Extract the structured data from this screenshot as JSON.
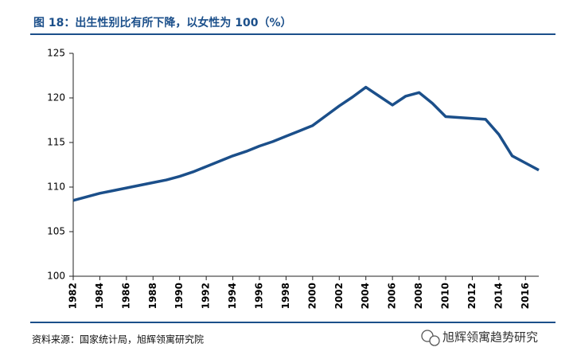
{
  "chart_data": {
    "type": "line",
    "title": "图 18：出生性别比有所下降，以女性为 100（%）",
    "source": "资料来源：国家统计局，旭辉领寓研究院",
    "watermark": "旭辉领寓趋势研究",
    "x": [
      1982,
      1983,
      1984,
      1985,
      1986,
      1987,
      1988,
      1989,
      1990,
      1991,
      1992,
      1993,
      1994,
      1995,
      1996,
      1997,
      1998,
      1999,
      2000,
      2001,
      2002,
      2003,
      2004,
      2005,
      2006,
      2007,
      2008,
      2009,
      2010,
      2011,
      2012,
      2013,
      2014,
      2015,
      2016,
      2017
    ],
    "series": [
      {
        "color": "#1b4f8a",
        "values": [
          108.5,
          108.9,
          109.3,
          109.6,
          109.9,
          110.2,
          110.5,
          110.8,
          111.2,
          111.7,
          112.3,
          112.9,
          113.5,
          114.0,
          114.6,
          115.1,
          115.7,
          116.3,
          116.9,
          118.0,
          119.1,
          120.1,
          121.2,
          120.2,
          119.2,
          120.2,
          120.6,
          119.4,
          117.9,
          117.8,
          117.7,
          117.6,
          115.9,
          113.5,
          112.7,
          111.9
        ]
      }
    ],
    "xlim": [
      1982,
      2017
    ],
    "xticks": [
      1982,
      1984,
      1986,
      1988,
      1990,
      1992,
      1994,
      1996,
      1998,
      2000,
      2002,
      2004,
      2006,
      2008,
      2010,
      2012,
      2014,
      2016
    ],
    "ylim": [
      100,
      125
    ],
    "yticks": [
      100,
      105,
      110,
      115,
      120,
      125
    ],
    "grid": false
  }
}
